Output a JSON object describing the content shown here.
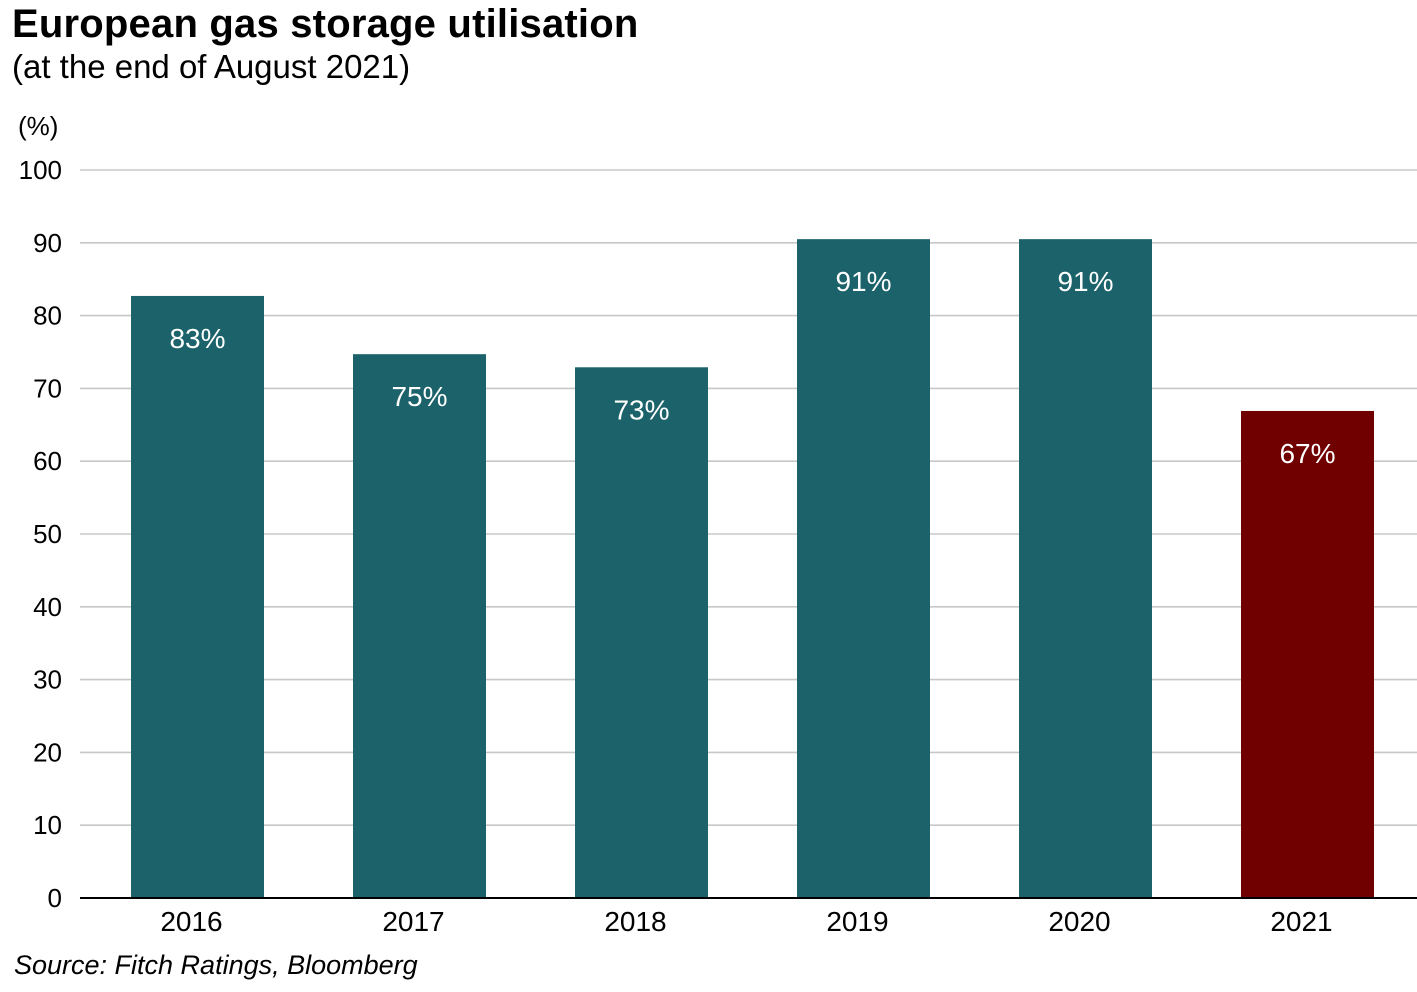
{
  "title": "European gas storage utilisation",
  "subtitle": "(at the end of August 2021)",
  "source": "Source: Fitch Ratings, Bloomberg",
  "chart_data": {
    "type": "bar",
    "categories": [
      "2016",
      "2017",
      "2018",
      "2019",
      "2020",
      "2021"
    ],
    "values": [
      82.7,
      74.7,
      72.9,
      90.5,
      90.5,
      66.9
    ],
    "data_labels": [
      "83%",
      "75%",
      "73%",
      "91%",
      "91%",
      "67%"
    ],
    "title": "European gas storage utilisation",
    "subtitle": "(at the end of August 2021)",
    "xlabel": "",
    "ylabel": "(%)",
    "ylim": [
      0,
      100
    ],
    "yticks": [
      0,
      10,
      20,
      30,
      40,
      50,
      60,
      70,
      80,
      90,
      100
    ],
    "grid": true,
    "legend": "none",
    "colors": {
      "bar": "#1b626a",
      "highlight": "#700000",
      "grid": "#c8c8c8",
      "axis": "#000000"
    },
    "highlight_index": 5
  }
}
